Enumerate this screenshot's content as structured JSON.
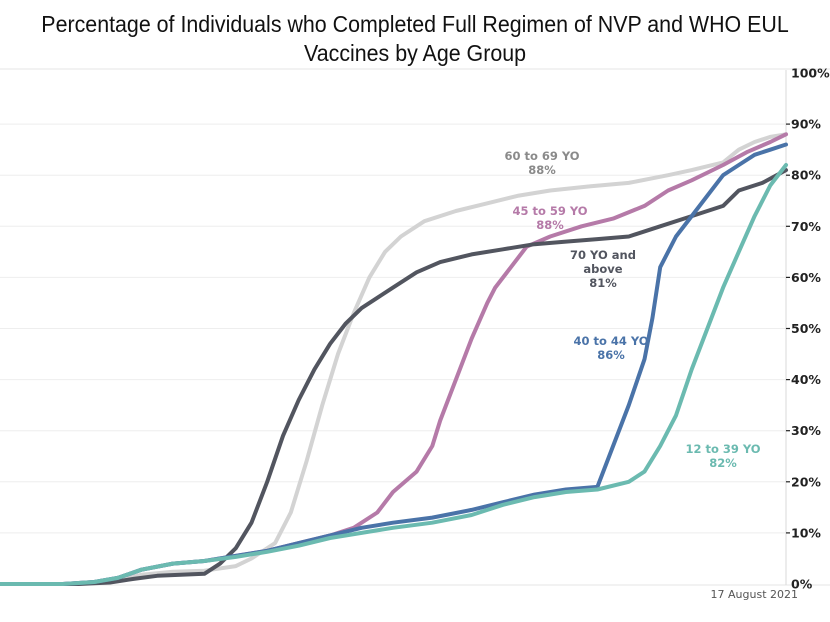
{
  "chart_data": {
    "type": "line",
    "title": "Percentage of Individuals who Completed Full Regimen of NVP and WHO EUL Vaccines by Age Group",
    "title_lines": [
      "Percentage of Individuals who Completed Full Regimen of NVP and WHO EUL",
      "Vaccines by Age Group"
    ],
    "xlabel": "",
    "ylabel": "",
    "x_unit": "day index (no x tick labels shown)",
    "xlim": [
      0,
      100
    ],
    "ylim": [
      0,
      100
    ],
    "y_axis_position": "right",
    "y_ticks": [
      "0%",
      "10%",
      "20%",
      "30%",
      "40%",
      "50%",
      "60%",
      "70%",
      "80%",
      "90%",
      "100%"
    ],
    "y_tick_values": [
      0,
      10,
      20,
      30,
      40,
      50,
      60,
      70,
      80,
      90,
      100
    ],
    "grid": true,
    "legend": "inline-annotations",
    "footer_date": "17 August 2021",
    "series": [
      {
        "name": "60 to 69 YO",
        "final_label": "88%",
        "color": "#d3d3d3",
        "label_color": "#8a8a8a",
        "points": [
          [
            0,
            0
          ],
          [
            8,
            0
          ],
          [
            12,
            0.3
          ],
          [
            15,
            0.8
          ],
          [
            18,
            1.8
          ],
          [
            22,
            2.4
          ],
          [
            26,
            2.6
          ],
          [
            30,
            3.5
          ],
          [
            32,
            5
          ],
          [
            35,
            8
          ],
          [
            37,
            14
          ],
          [
            39,
            24
          ],
          [
            41,
            35
          ],
          [
            43,
            45
          ],
          [
            45,
            53
          ],
          [
            47,
            60
          ],
          [
            49,
            65
          ],
          [
            51,
            68
          ],
          [
            54,
            71
          ],
          [
            58,
            73
          ],
          [
            62,
            74.5
          ],
          [
            66,
            76
          ],
          [
            70,
            77
          ],
          [
            75,
            77.8
          ],
          [
            80,
            78.5
          ],
          [
            85,
            80
          ],
          [
            88,
            81
          ],
          [
            92,
            82.5
          ],
          [
            94,
            85
          ],
          [
            96,
            86.5
          ],
          [
            98,
            87.5
          ],
          [
            100,
            88
          ]
        ]
      },
      {
        "name": "45 to 59 YO",
        "final_label": "88%",
        "color": "#b57aa8",
        "label_color": "#b57aa8",
        "points": [
          [
            0,
            0
          ],
          [
            8,
            0
          ],
          [
            12,
            0.4
          ],
          [
            15,
            1.2
          ],
          [
            18,
            2.8
          ],
          [
            22,
            4
          ],
          [
            26,
            4.5
          ],
          [
            30,
            5.5
          ],
          [
            34,
            6.5
          ],
          [
            38,
            8
          ],
          [
            42,
            9.5
          ],
          [
            45,
            11
          ],
          [
            48,
            14
          ],
          [
            50,
            18
          ],
          [
            53,
            22
          ],
          [
            55,
            27
          ],
          [
            56,
            32
          ],
          [
            58,
            40
          ],
          [
            60,
            48
          ],
          [
            62,
            55
          ],
          [
            63,
            58
          ],
          [
            65,
            62
          ],
          [
            67,
            66
          ],
          [
            70,
            68
          ],
          [
            74,
            70
          ],
          [
            78,
            71.5
          ],
          [
            82,
            74
          ],
          [
            85,
            77
          ],
          [
            88,
            79
          ],
          [
            92,
            82
          ],
          [
            95,
            84.5
          ],
          [
            98,
            86.5
          ],
          [
            100,
            88
          ]
        ]
      },
      {
        "name": "70 YO and above",
        "final_label": "81%",
        "label_lines": [
          "70 YO and",
          "above",
          "81%"
        ],
        "color": "#52555f",
        "label_color": "#52555f",
        "points": [
          [
            0,
            0
          ],
          [
            10,
            0
          ],
          [
            14,
            0.3
          ],
          [
            17,
            1
          ],
          [
            20,
            1.6
          ],
          [
            23,
            1.8
          ],
          [
            26,
            2
          ],
          [
            28,
            4
          ],
          [
            30,
            7
          ],
          [
            32,
            12
          ],
          [
            34,
            20
          ],
          [
            36,
            29
          ],
          [
            38,
            36
          ],
          [
            40,
            42
          ],
          [
            42,
            47
          ],
          [
            44,
            51
          ],
          [
            46,
            54
          ],
          [
            48,
            56
          ],
          [
            50,
            58
          ],
          [
            53,
            61
          ],
          [
            56,
            63
          ],
          [
            60,
            64.5
          ],
          [
            64,
            65.5
          ],
          [
            68,
            66.5
          ],
          [
            72,
            67
          ],
          [
            76,
            67.5
          ],
          [
            80,
            68
          ],
          [
            84,
            70
          ],
          [
            88,
            72
          ],
          [
            92,
            74
          ],
          [
            94,
            77
          ],
          [
            97,
            78.5
          ],
          [
            100,
            81
          ]
        ]
      },
      {
        "name": "40 to 44 YO",
        "final_label": "86%",
        "color": "#4a73a8",
        "label_color": "#4a73a8",
        "points": [
          [
            0,
            0
          ],
          [
            8,
            0
          ],
          [
            12,
            0.4
          ],
          [
            15,
            1.2
          ],
          [
            18,
            2.8
          ],
          [
            22,
            4
          ],
          [
            26,
            4.5
          ],
          [
            30,
            5.5
          ],
          [
            34,
            6.5
          ],
          [
            38,
            8
          ],
          [
            42,
            9.5
          ],
          [
            46,
            11
          ],
          [
            50,
            12
          ],
          [
            55,
            13
          ],
          [
            60,
            14.5
          ],
          [
            64,
            16
          ],
          [
            68,
            17.5
          ],
          [
            72,
            18.5
          ],
          [
            76,
            19
          ],
          [
            78,
            27
          ],
          [
            80,
            35
          ],
          [
            82,
            44
          ],
          [
            83,
            52
          ],
          [
            84,
            62
          ],
          [
            86,
            68
          ],
          [
            88,
            72
          ],
          [
            90,
            76
          ],
          [
            92,
            80
          ],
          [
            94,
            82
          ],
          [
            96,
            84
          ],
          [
            98,
            85
          ],
          [
            100,
            86
          ]
        ]
      },
      {
        "name": "12 to 39 YO",
        "final_label": "82%",
        "color": "#6bbab0",
        "label_color": "#6bbab0",
        "points": [
          [
            0,
            0
          ],
          [
            8,
            0
          ],
          [
            12,
            0.4
          ],
          [
            15,
            1.2
          ],
          [
            18,
            2.8
          ],
          [
            22,
            4
          ],
          [
            26,
            4.5
          ],
          [
            30,
            5.3
          ],
          [
            34,
            6.3
          ],
          [
            38,
            7.5
          ],
          [
            42,
            9
          ],
          [
            46,
            10
          ],
          [
            50,
            11
          ],
          [
            55,
            12
          ],
          [
            60,
            13.5
          ],
          [
            64,
            15.5
          ],
          [
            68,
            17
          ],
          [
            72,
            18
          ],
          [
            76,
            18.5
          ],
          [
            80,
            20
          ],
          [
            82,
            22
          ],
          [
            84,
            27
          ],
          [
            86,
            33
          ],
          [
            88,
            42
          ],
          [
            90,
            50
          ],
          [
            92,
            58
          ],
          [
            94,
            65
          ],
          [
            96,
            72
          ],
          [
            98,
            78
          ],
          [
            100,
            82
          ]
        ]
      }
    ]
  }
}
